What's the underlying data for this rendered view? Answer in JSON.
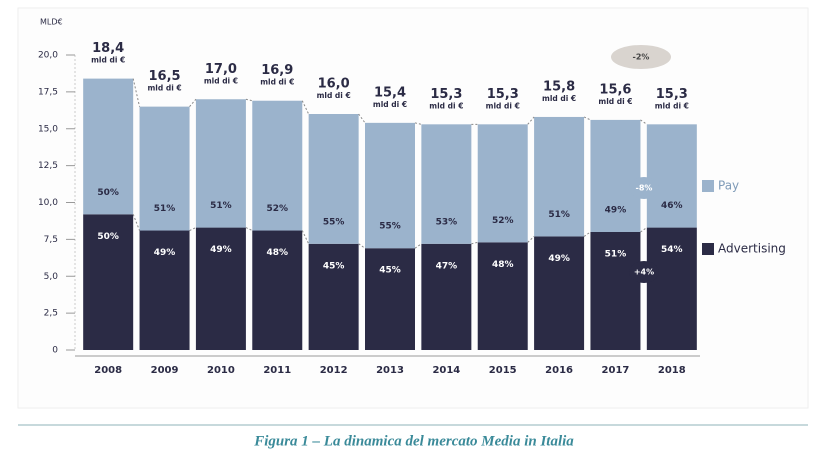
{
  "chart_data": {
    "type": "stacked-bar",
    "y_unit_label": "MLD€",
    "categories": [
      "2008",
      "2009",
      "2010",
      "2011",
      "2012",
      "2013",
      "2014",
      "2015",
      "2016",
      "2017",
      "2018"
    ],
    "series": [
      {
        "name": "Advertising",
        "color": "#2b2b45",
        "values": [
          9.2,
          8.1,
          8.3,
          8.1,
          7.2,
          6.9,
          7.2,
          7.3,
          7.7,
          8.0,
          8.3
        ],
        "share_labels": [
          "50%",
          "49%",
          "49%",
          "48%",
          "45%",
          "45%",
          "47%",
          "48%",
          "49%",
          "51%",
          "54%"
        ]
      },
      {
        "name": "Pay",
        "color": "#9bb3cc",
        "values": [
          9.2,
          8.4,
          8.7,
          8.8,
          8.8,
          8.5,
          8.1,
          8.0,
          8.1,
          7.6,
          7.0
        ],
        "share_labels": [
          "50%",
          "51%",
          "51%",
          "52%",
          "55%",
          "55%",
          "53%",
          "52%",
          "51%",
          "49%",
          "46%"
        ]
      }
    ],
    "totals": {
      "values": [
        18.4,
        16.5,
        17.0,
        16.9,
        16.0,
        15.4,
        15.3,
        15.3,
        15.8,
        15.6,
        15.3
      ],
      "value_labels": [
        "18,4",
        "16,5",
        "17,0",
        "16,9",
        "16,0",
        "15,4",
        "15,3",
        "15,3",
        "15,8",
        "15,6",
        "15,3"
      ],
      "unit_label": "mld di €"
    },
    "annotations": [
      "-2%",
      "-8%",
      "+4%"
    ],
    "ylim": [
      0,
      20
    ],
    "yticks": [
      {
        "value": 0,
        "label": "0"
      },
      {
        "value": 2.5,
        "label": "2,5"
      },
      {
        "value": 5,
        "label": "5,0"
      },
      {
        "value": 7.5,
        "label": "7,5"
      },
      {
        "value": 10,
        "label": "10,0"
      },
      {
        "value": 12.5,
        "label": "12,5"
      },
      {
        "value": 15,
        "label": "15,0"
      },
      {
        "value": 17.5,
        "label": "17,5"
      },
      {
        "value": 20,
        "label": "20,0"
      }
    ],
    "legend": "right",
    "caption": "Figura 1 – La dinamica del mercato Media in Italia"
  }
}
